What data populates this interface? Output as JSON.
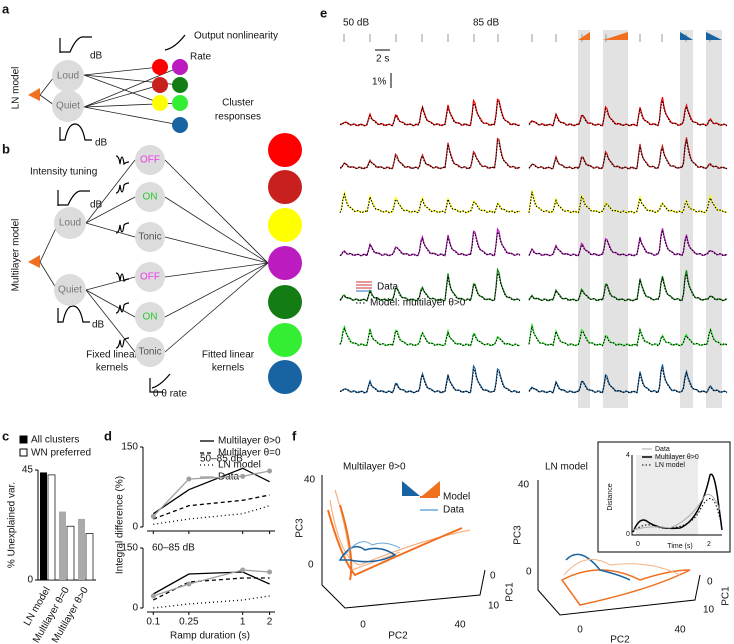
{
  "panel_a": {
    "letter": "a",
    "model_label": "LN model",
    "output_label": "Output nonlinearity",
    "rate": "Rate",
    "db_top": "dB",
    "db_bottom": "dB",
    "loud": "Loud",
    "quiet": "Quiet",
    "cluster_label": [
      "Cluster",
      "responses"
    ]
  },
  "panel_b": {
    "letter": "b",
    "tuning_label": "Intensity tuning",
    "model_label": "Multilayer model",
    "db_top": "dB",
    "db_bottom": "dB",
    "loud": "Loud",
    "quiet": "Quiet",
    "kernels": [
      "OFF",
      "ON",
      "Tonic",
      "OFF",
      "ON",
      "Tonic"
    ],
    "kernel_colors": [
      "#e83ce8",
      "#2ec82e",
      "#555555",
      "#e83ce8",
      "#2ec82e",
      "#555555"
    ],
    "fixed_label": [
      "Fixed linear",
      "kernels"
    ],
    "fitted_label": [
      "Fitted linear",
      "kernels"
    ],
    "rate_label": "0 θ rate",
    "cluster_colors": [
      "#ff0000",
      "#c8201e",
      "#ffff00",
      "#bb1bbf",
      "#137d13",
      "#33ee33",
      "#1864a3"
    ]
  },
  "panel_c": {
    "letter": "c",
    "type": "bar",
    "ylabel": "% Unexplained var.",
    "categories": [
      "LN model",
      "Multilayer θ=0",
      "Multilayer θ>0"
    ],
    "series": [
      {
        "name": "All clusters",
        "color": "#000000",
        "colors": [
          "#000000",
          "#aaaaaa",
          "#aaaaaa"
        ],
        "values": [
          44,
          28,
          25
        ]
      },
      {
        "name": "WN preferred",
        "color": "#ffffff",
        "values": [
          43,
          22,
          19
        ]
      }
    ],
    "ylim": [
      0,
      45
    ],
    "yticks": [
      0,
      45
    ]
  },
  "panel_d": {
    "letter": "d",
    "type": "line",
    "xlabel": "Ramp duration (s)",
    "ylabel": "Integral difference (%)",
    "x": [
      0.1,
      0.25,
      1,
      2
    ],
    "xlim": [
      0.085,
      2.3
    ],
    "xticks": [
      0.1,
      0.25,
      1,
      2
    ],
    "log_x": true,
    "legend": [
      {
        "name": "Multilayer θ>0",
        "color": "#000000",
        "dash": "none"
      },
      {
        "name": "Multilayer θ=0",
        "color": "#000000",
        "dash": "4 3"
      },
      {
        "name": "LN model",
        "color": "#000000",
        "dash": "1 3"
      },
      {
        "name": "Data",
        "color": "#a0a0a0",
        "dash": "none"
      }
    ],
    "subplots": [
      {
        "label": "50–85 dB",
        "ylim": [
          0,
          150
        ],
        "yticks": [
          0,
          150
        ],
        "series": [
          {
            "values": [
              25,
              70,
              110,
              85
            ]
          },
          {
            "values": [
              15,
              40,
              50,
              60
            ]
          },
          {
            "values": [
              5,
              15,
              25,
              40
            ]
          },
          {
            "values": [
              20,
              90,
              95,
              105
            ]
          }
        ]
      },
      {
        "label": "60–85 dB",
        "ylim": [
          0,
          150
        ],
        "yticks": [
          0,
          150
        ],
        "series": [
          {
            "values": [
              35,
              85,
              90,
              60
            ]
          },
          {
            "values": [
              20,
              65,
              75,
              75
            ]
          },
          {
            "values": [
              0,
              10,
              20,
              30
            ]
          },
          {
            "values": [
              30,
              60,
              95,
              90
            ]
          }
        ]
      }
    ]
  },
  "panel_e": {
    "letter": "e",
    "level_low": "50 dB",
    "level_high": "85 dB",
    "time_scale": "2 s",
    "amp_scale": "1%",
    "legend_data": "Data",
    "legend_model": "Model: multilayer θ>0"
  },
  "panel_f": {
    "letter": "f",
    "left": {
      "title": "Multilayer θ>0",
      "legend": [
        "Model",
        "Data"
      ],
      "pc3": "PC3",
      "pc2": "PC2",
      "pc1": "PC1",
      "pc3_ticks": [
        40,
        0
      ],
      "pc2_ticks": [
        0,
        40
      ],
      "pc1_ticks": [
        0,
        10
      ]
    },
    "right": {
      "title": "LN model",
      "pc3": "PC3",
      "pc2": "PC2",
      "pc1": "PC1",
      "pc3_ticks": [
        40,
        0
      ],
      "pc2_ticks": [
        0,
        40
      ],
      "pc1_ticks": [
        0,
        10
      ]
    },
    "inset": {
      "legend": [
        "Data",
        "Multilayer θ>0",
        "LN model"
      ],
      "ylabel": "Distance",
      "xlabel": "Time (s)",
      "yticks": [
        4,
        0
      ],
      "xticks": [
        0,
        2
      ]
    }
  }
}
